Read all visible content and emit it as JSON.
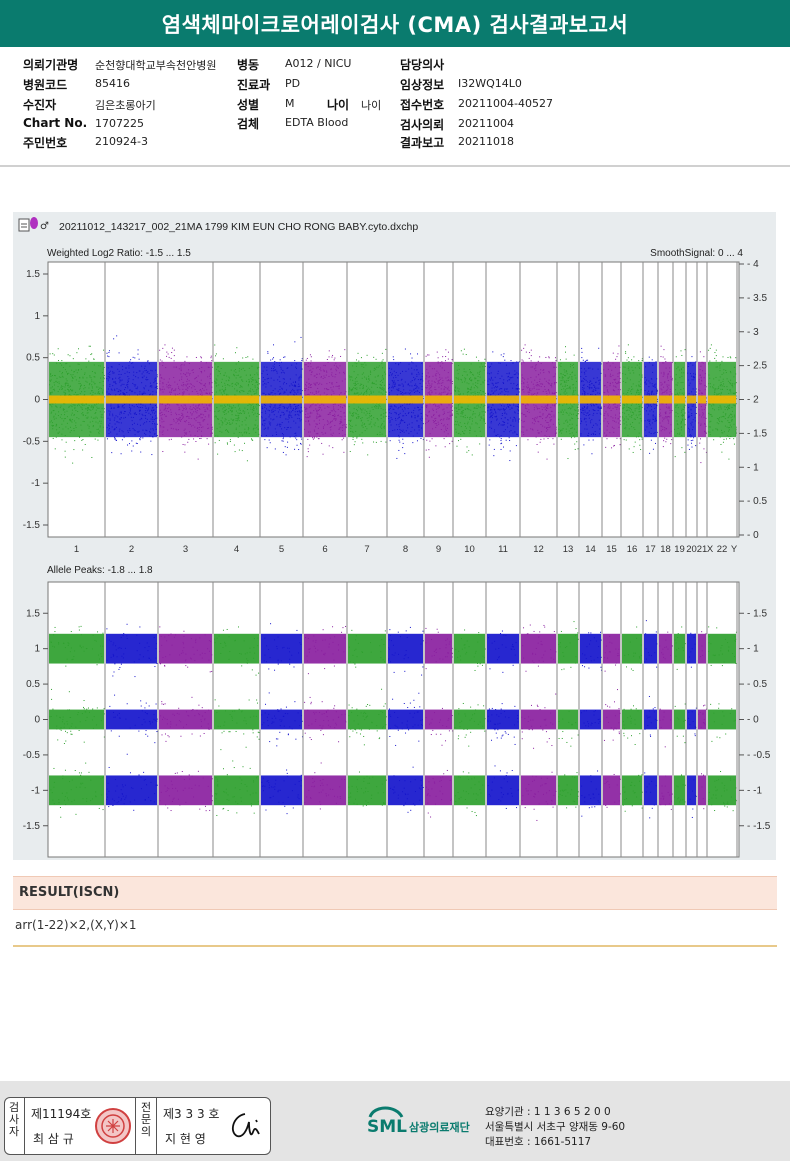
{
  "title": "염색체마이크로어레이검사 (CMA) 검사결과보고서",
  "info": {
    "institution_label": "의뢰기관명",
    "institution": "순천향대학교부속천안병원",
    "ward_label": "병동",
    "ward": "A012 / NICU",
    "doctor_label": "담당의사",
    "doctor": "",
    "hospital_code_label": "병원코드",
    "hospital_code": "85416",
    "dept_label": "진료과",
    "dept": "PD",
    "clinical_label": "임상정보",
    "clinical": "I32WQ14L0",
    "patient_label": "수진자",
    "patient": "김은초롱아기",
    "sex_label": "성별",
    "sex": "M",
    "age_label": "나이",
    "age": "나이",
    "receipt_label": "접수번호",
    "receipt": "20211004-40527",
    "chart_label": "Chart No.",
    "chart": "1707225",
    "specimen_label": "검체",
    "specimen": "EDTA Blood",
    "request_label": "검사의뢰",
    "request": "20211004",
    "id_label": "주민번호",
    "id": "210924-3",
    "report_label": "결과보고",
    "report": "20211018"
  },
  "plot": {
    "filename": "20211012_143217_002_21MA 1799 KIM EUN CHO RONG BABY.cyto.dxchp",
    "top_left_label": "Weighted Log2 Ratio: -1.5 ... 1.5",
    "top_right_label": "SmoothSignal: 0 ... 4",
    "bottom_left_label": "Allele Peaks: -1.8 ... 1.8",
    "chromosomes": [
      "1",
      "2",
      "3",
      "4",
      "5",
      "6",
      "7",
      "8",
      "9",
      "10",
      "11",
      "12",
      "13",
      "14",
      "15",
      "16",
      "17",
      "18",
      "19",
      "20",
      "21",
      "22",
      "X",
      "Y"
    ],
    "top_left_ticks": [
      "1.5",
      "1",
      "0.5",
      "0",
      "-0.5",
      "-1",
      "-1.5"
    ],
    "top_right_ticks": [
      "4",
      "3.5",
      "3",
      "2.5",
      "2",
      "1.5",
      "1",
      "0.5",
      "0"
    ],
    "bottom_left_ticks": [
      "1.5",
      "1",
      "0.5",
      "0",
      "-0.5",
      "-1",
      "-1.5"
    ],
    "bottom_right_ticks": [
      "1.5",
      "1",
      "0.5",
      "0",
      "-0.5",
      "-1",
      "-1.5"
    ],
    "colors": {
      "green": "#2ea02e",
      "blue": "#1515cc",
      "purple": "#8a1fa0",
      "orange": "#f5b800"
    }
  },
  "result": {
    "heading": "RESULT(ISCN)",
    "text": "arr(1-22)×2,(X,Y)×1"
  },
  "footer": {
    "examiner_label": "검사자",
    "examiner_no": "제11194호",
    "examiner_name": "최 삼 규",
    "specialist_label": "전문의",
    "specialist_no": "제3 3 3 호",
    "specialist_name": "지 현 영",
    "logo_text": "SML",
    "foundation_name": "삼광의료재단",
    "care_org": "요양기관 : 1 1 3 6 5 2 0 0",
    "address": "서울특별시 서초구 양재동 9-60",
    "phone": "대표번호 : 1661-5117"
  }
}
